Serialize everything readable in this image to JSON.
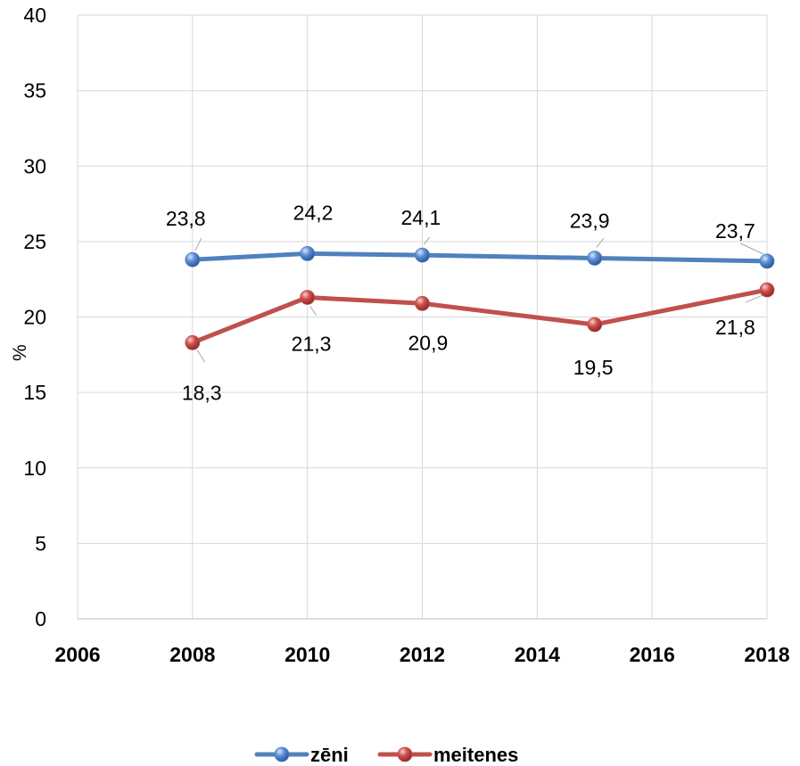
{
  "chart_data": {
    "type": "line",
    "title": "",
    "xlabel": "",
    "ylabel": "%",
    "xlim": [
      2006,
      2018
    ],
    "ylim": [
      0,
      40
    ],
    "x_ticks": [
      "2006",
      "2008",
      "2010",
      "2012",
      "2014",
      "2016",
      "2018"
    ],
    "y_ticks": [
      "0",
      "5",
      "10",
      "15",
      "20",
      "25",
      "30",
      "35",
      "40"
    ],
    "grid": true,
    "legend_position": "bottom",
    "series": [
      {
        "name": "zēni",
        "color": "#4F81BD",
        "x": [
          2008,
          2010,
          2012,
          2015,
          2018
        ],
        "y": [
          23.8,
          24.2,
          24.1,
          23.9,
          23.7
        ],
        "labels": [
          "23,8",
          "24,2",
          "24,1",
          "23,9",
          "23,7"
        ]
      },
      {
        "name": "meitenes",
        "color": "#C0504D",
        "x": [
          2008,
          2010,
          2012,
          2015,
          2018
        ],
        "y": [
          18.3,
          21.3,
          20.9,
          19.5,
          21.8
        ],
        "labels": [
          "18,3",
          "21,3",
          "20,9",
          "19,5",
          "21,8"
        ]
      }
    ]
  }
}
